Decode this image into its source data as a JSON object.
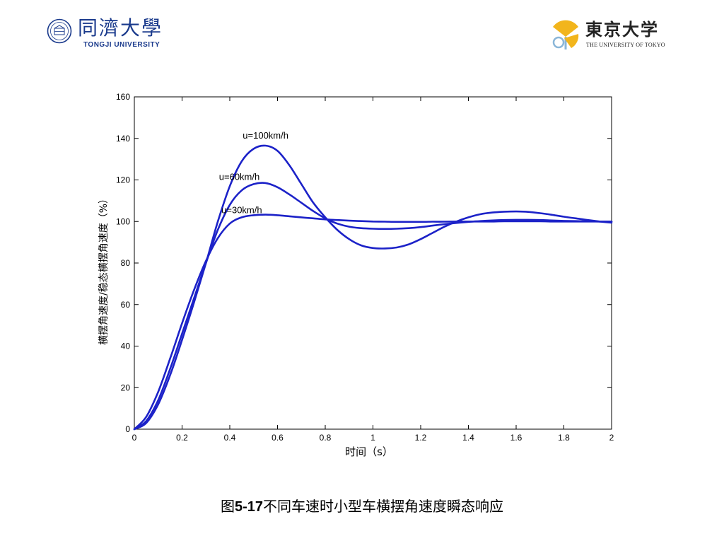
{
  "header": {
    "left_logo": {
      "name_cn": "同濟大學",
      "name_en": "TONGJI UNIVERSITY"
    },
    "right_logo": {
      "name_cn": "東京大学",
      "name_en": "THE UNIVERSITY OF TOKYO"
    }
  },
  "caption": {
    "prefix": "图",
    "number": "5-17",
    "text": "不同车速时小型车横摆角速度瞬态响应"
  },
  "colors": {
    "series": "#1c22c8",
    "axis": "#000000",
    "logo_blue": "#1a3a8c",
    "ginkgo_yellow": "#f2b51c"
  },
  "chart_data": {
    "type": "line",
    "title": "",
    "xlabel": "时间（s）",
    "ylabel": "横摆角速度/稳态横摆角速度（%）",
    "xlim": [
      0,
      2
    ],
    "ylim": [
      0,
      160
    ],
    "xticks": [
      0,
      0.2,
      0.4,
      0.6,
      0.8,
      1,
      1.2,
      1.4,
      1.6,
      1.8,
      2
    ],
    "xtick_labels": [
      "0",
      "0.2",
      "0.4",
      "0.6",
      "0.8",
      "1",
      "1.2",
      "1.4",
      "1.6",
      "1.8",
      "2"
    ],
    "yticks": [
      0,
      20,
      40,
      60,
      80,
      100,
      120,
      140,
      160
    ],
    "ytick_labels": [
      "0",
      "20",
      "40",
      "60",
      "80",
      "100",
      "120",
      "140",
      "160"
    ],
    "grid": false,
    "annotations": [
      {
        "text": "u=100km/h",
        "x": 0.55,
        "y": 140
      },
      {
        "text": "u=60km/h",
        "x": 0.44,
        "y": 120
      },
      {
        "text": "u=30km/h",
        "x": 0.45,
        "y": 104
      }
    ],
    "x": [
      0,
      0.05,
      0.1,
      0.15,
      0.2,
      0.25,
      0.3,
      0.35,
      0.4,
      0.45,
      0.5,
      0.55,
      0.6,
      0.65,
      0.7,
      0.75,
      0.8,
      0.85,
      0.9,
      0.95,
      1.0,
      1.05,
      1.1,
      1.15,
      1.2,
      1.25,
      1.3,
      1.35,
      1.4,
      1.45,
      1.5,
      1.55,
      1.6,
      1.65,
      1.7,
      1.75,
      1.8,
      1.85,
      1.9,
      1.95,
      2.0
    ],
    "series": [
      {
        "values": [
          0,
          6,
          18,
          34,
          51,
          67,
          81,
          92,
          99,
          102,
          103,
          103.3,
          103,
          102.5,
          102,
          101.5,
          101,
          100.7,
          100.4,
          100.2,
          100,
          99.9,
          99.8,
          99.8,
          99.8,
          99.9,
          99.9,
          100,
          100,
          100,
          100,
          100.1,
          100.1,
          100.1,
          100.1,
          100,
          100,
          100,
          100,
          100,
          100
        ]
      },
      {
        "values": [
          0,
          4,
          14,
          29,
          46,
          63,
          80,
          96,
          108,
          115,
          118,
          118.5,
          116.5,
          113,
          109,
          105,
          101.5,
          99,
          97.5,
          96.8,
          96.5,
          96.4,
          96.5,
          96.8,
          97.3,
          98,
          98.7,
          99.3,
          99.8,
          100.2,
          100.5,
          100.7,
          100.8,
          100.8,
          100.7,
          100.5,
          100.3,
          100.2,
          100.1,
          100,
          99.9
        ]
      },
      {
        "values": [
          0,
          3,
          12,
          26,
          43,
          61,
          80,
          100,
          117,
          129,
          135,
          136.5,
          134,
          127,
          118,
          109,
          102,
          96,
          91.5,
          88.5,
          87.2,
          87,
          87.5,
          89,
          91.5,
          94.5,
          97.5,
          100,
          102,
          103.5,
          104.3,
          104.7,
          104.8,
          104.6,
          104,
          103.2,
          102.3,
          101.5,
          100.7,
          100,
          99.4
        ]
      }
    ]
  }
}
